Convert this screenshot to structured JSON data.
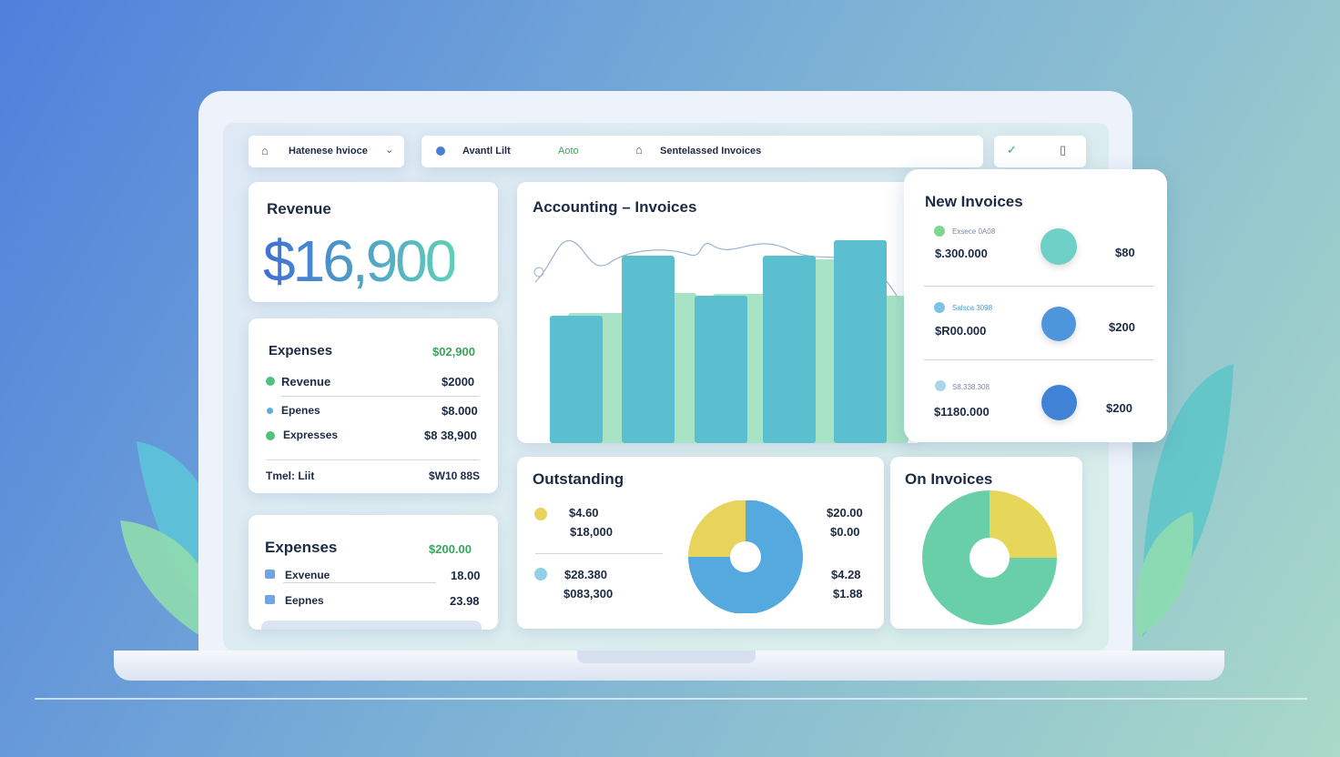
{
  "toolbar": {
    "items": [
      "Hatenese hvioce",
      "Avantl Lilt",
      "Aoto",
      "Sentelassed Invoices"
    ]
  },
  "revenue": {
    "title": "Revenue",
    "amount": "$16,900"
  },
  "expenses": {
    "title": "Expenses",
    "total": "$02,900",
    "rows": [
      [
        "Revenue",
        "$2000"
      ],
      [
        "Epenes",
        "$8.000"
      ],
      [
        "Expresses",
        "$8 38,900"
      ]
    ],
    "footer": [
      "Tmel: Liit",
      "$W10 88S"
    ]
  },
  "expenses2": {
    "title": "Expenses",
    "total": "$200.00",
    "rows": [
      [
        "Exvenue",
        "18.00"
      ],
      [
        "Eepnes",
        "23.98"
      ]
    ]
  },
  "chart": {
    "title": "Accounting – Invoices",
    "series": [
      {
        "color": "#9fe0bf",
        "values": [
          143,
          165,
          164,
          202,
          162
        ]
      },
      {
        "color": "#5bbfcf",
        "values": [
          140,
          206,
          162,
          206,
          223
        ]
      }
    ]
  },
  "new_invoices": {
    "title": "New Invoices",
    "rows": [
      {
        "label": "Exsece 0A08",
        "amount": "$.300.000",
        "value": "$80"
      },
      {
        "label": "Salsca 3098",
        "amount": "$R00.000",
        "value": "$200"
      },
      {
        "label": "S8.338.308",
        "amount": "$1180.000",
        "value": "$200"
      }
    ]
  },
  "outstanding": {
    "title": "Outstanding",
    "left": [
      [
        "$4.60",
        "$18,000"
      ],
      [
        "$28.380",
        "$083,300"
      ]
    ],
    "right": [
      [
        "$20.00",
        "$0.00"
      ],
      [
        "$4.28",
        "$1.88"
      ]
    ],
    "slices": [
      25,
      75
    ],
    "colors": [
      "#e8d35c",
      "#55a9de"
    ]
  },
  "on_invoices": {
    "title": "On Invoices",
    "slices": [
      25,
      75
    ],
    "colors": [
      "#e6d65a",
      "#69cfa8"
    ]
  }
}
